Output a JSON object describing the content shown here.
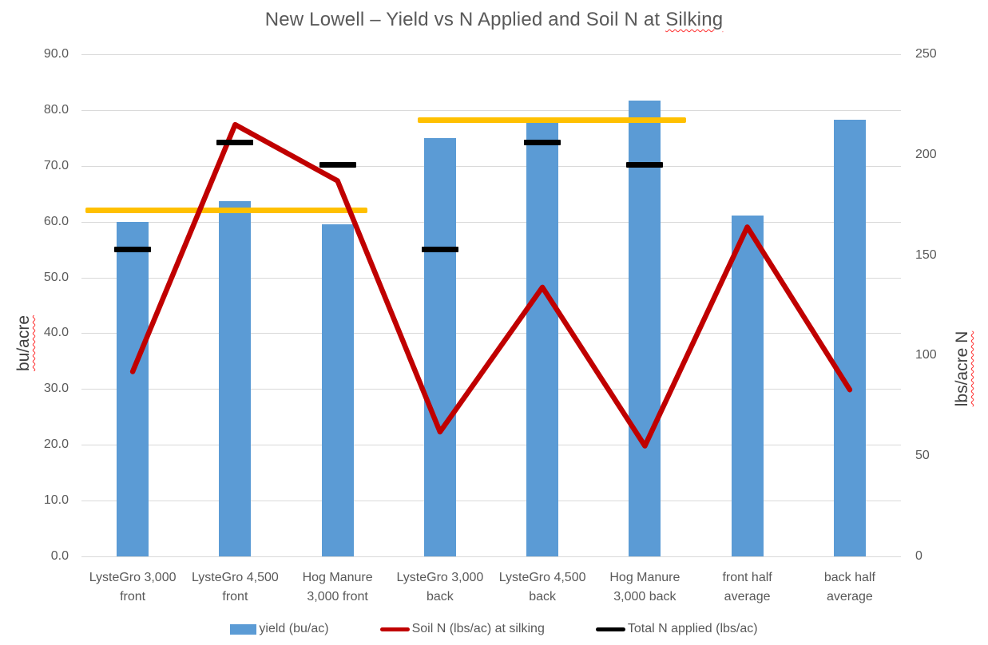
{
  "title_parts": {
    "main": "New Lowell – Yield vs N Applied and Soil N at ",
    "spellcheck": "Silking"
  },
  "colors": {
    "bar_blue": "#5B9BD5",
    "line_red": "#C00000",
    "dash_black": "#000000",
    "reference_gold": "#FFC000",
    "gridline_gray": "#D9D9D9",
    "text_gray": "#595959",
    "spellcheck_red": "#FF2D2D"
  },
  "chart_data": {
    "type": "bar",
    "title": "New Lowell – Yield vs N Applied and Soil N at Silking",
    "categories": [
      "LysteGro 3,000\nfront",
      "LysteGro 4,500\nfront",
      "Hog Manure\n3,000 front",
      "LysteGro 3,000\nback",
      "LysteGro 4,500\nback",
      "Hog Manure\n3,000 back",
      "front half\naverage",
      "back half\naverage"
    ],
    "series": [
      {
        "name": "yield (bu/ac)",
        "type": "bar",
        "axis": "left",
        "color": "#5B9BD5",
        "values": [
          60.0,
          63.7,
          59.5,
          75.0,
          77.8,
          81.7,
          61.1,
          78.3
        ]
      },
      {
        "name": "Soil N (lbs/ac) at silking",
        "type": "line",
        "axis": "right",
        "color": "#C00000",
        "values": [
          92,
          215,
          187,
          62,
          134,
          55,
          164,
          83
        ]
      },
      {
        "name": "Total N applied (lbs/ac)",
        "type": "dash",
        "axis": "right",
        "color": "#000000",
        "values": [
          153,
          206,
          195,
          153,
          206,
          195,
          null,
          null
        ]
      }
    ],
    "reference_lines": [
      {
        "axis": "left",
        "value": 62.0,
        "from_category": -0.46,
        "to_category": 2.29,
        "color": "#FFC000",
        "note": "front half horizontal marker"
      },
      {
        "axis": "left",
        "value": 78.2,
        "from_category": 2.78,
        "to_category": 5.4,
        "color": "#FFC000",
        "note": "back half horizontal marker"
      }
    ],
    "left_axis": {
      "label": "bu/acre",
      "min": 0,
      "max": 90,
      "step": 10,
      "decimals": 1
    },
    "right_axis": {
      "label": "lbs/acre N",
      "min": 0,
      "max": 250,
      "step": 50,
      "decimals": 0
    },
    "grid": true,
    "legend_position": "bottom"
  }
}
